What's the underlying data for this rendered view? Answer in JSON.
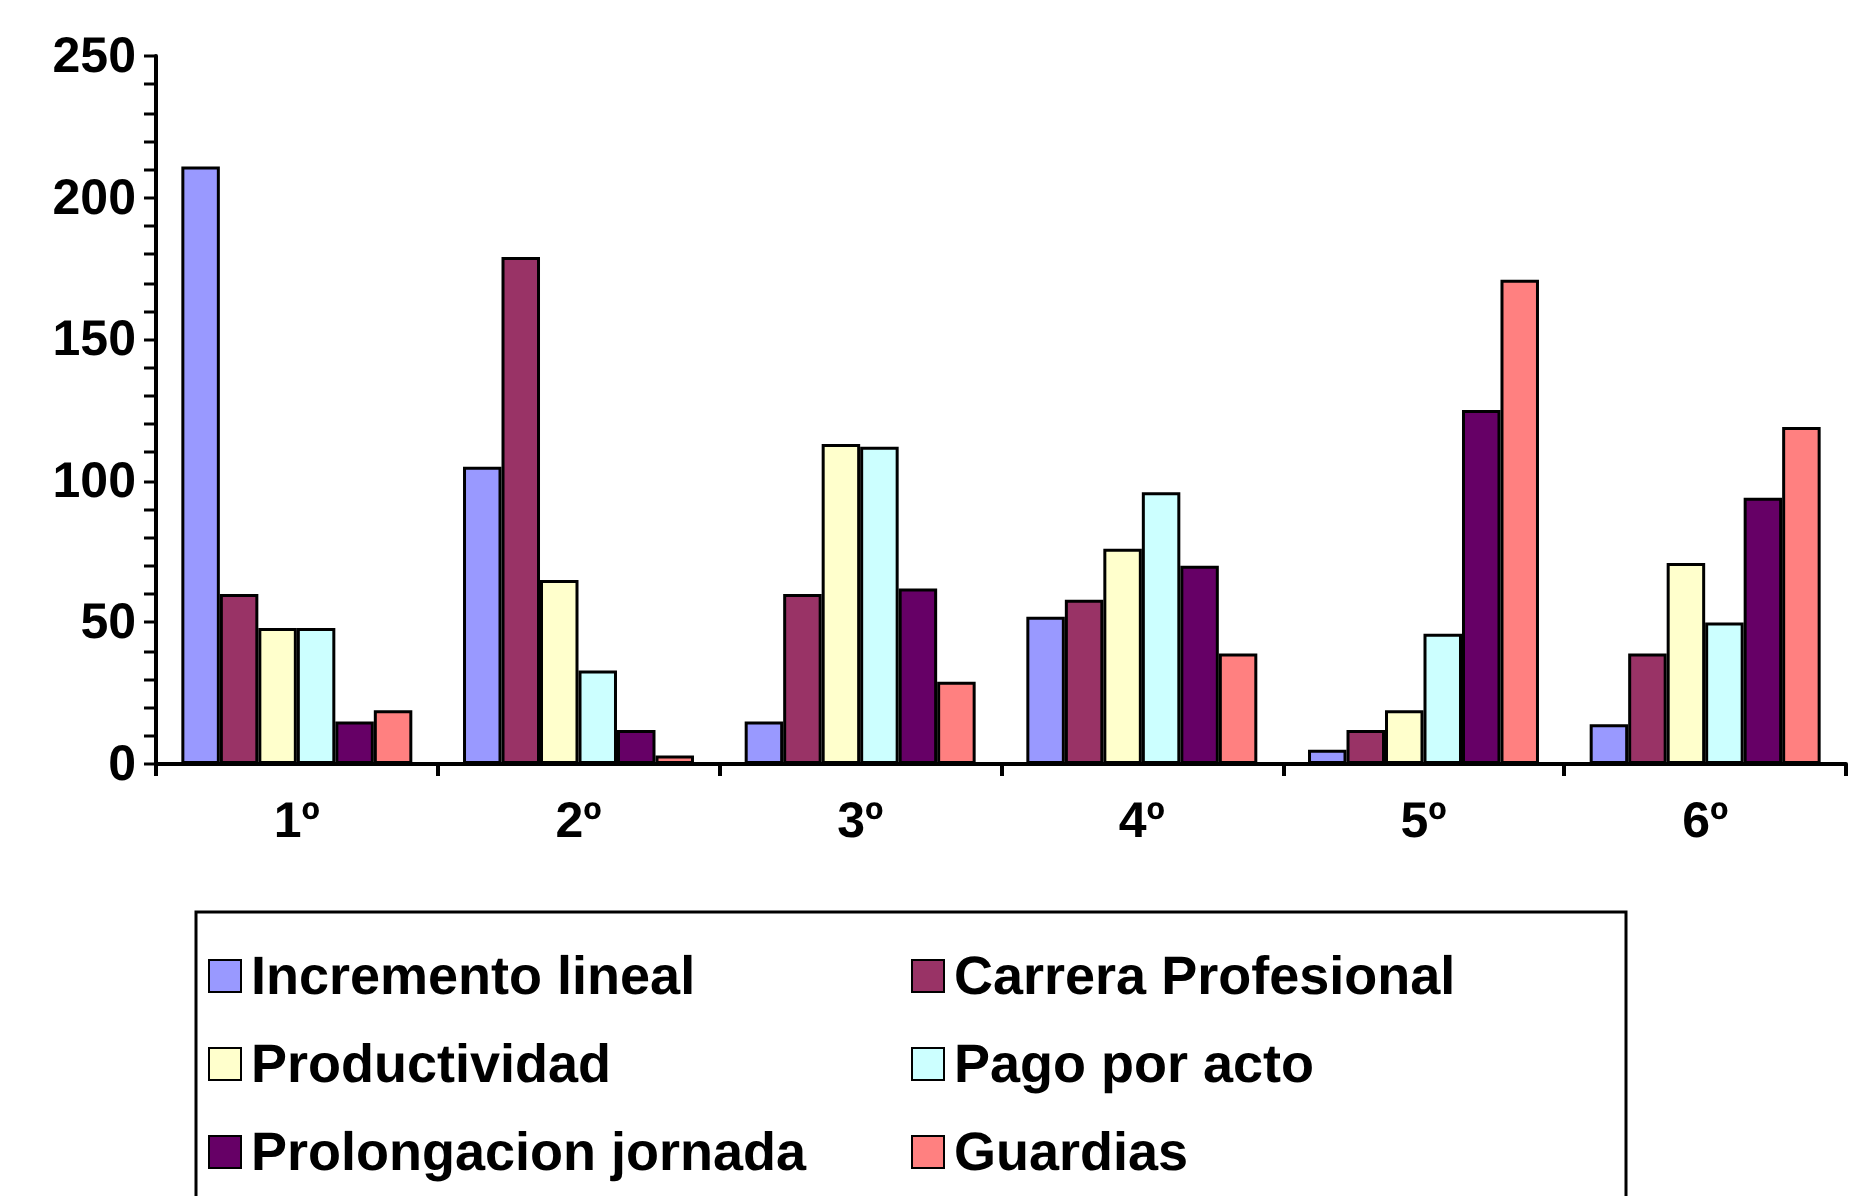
{
  "chart_data": {
    "type": "bar",
    "categories": [
      "1º",
      "2º",
      "3º",
      "4º",
      "5º",
      "6º"
    ],
    "ylim": [
      0,
      250
    ],
    "yticks": [
      0,
      {
        "value": 10,
        "label": null
      },
      {
        "value": 20,
        "label": null
      },
      {
        "value": 30,
        "label": null
      },
      {
        "value": 40,
        "label": null
      },
      50,
      {
        "value": 60,
        "label": null
      },
      {
        "value": 70,
        "label": null
      },
      {
        "value": 80,
        "label": null
      },
      {
        "value": 90,
        "label": null
      },
      100,
      {
        "value": 110,
        "label": null
      },
      {
        "value": 120,
        "label": null
      },
      {
        "value": 130,
        "label": null
      },
      {
        "value": 140,
        "label": null
      },
      150,
      {
        "value": 160,
        "label": null
      },
      {
        "value": 170,
        "label": null
      },
      {
        "value": 180,
        "label": null
      },
      {
        "value": 190,
        "label": null
      },
      200,
      {
        "value": 210,
        "label": null
      },
      {
        "value": 220,
        "label": null
      },
      {
        "value": 230,
        "label": null
      },
      {
        "value": 240,
        "label": null
      },
      250
    ],
    "grid": false,
    "legend": "bottom",
    "series": [
      {
        "name": "Incremento lineal",
        "color": "#9999ff",
        "values": [
          211,
          105,
          15,
          52,
          5,
          14
        ]
      },
      {
        "name": "Carrera Profesional",
        "color": "#993366",
        "values": [
          60,
          179,
          60,
          58,
          12,
          39
        ]
      },
      {
        "name": "Productividad",
        "color": "#ffffcc",
        "values": [
          48,
          65,
          113,
          76,
          19,
          71
        ]
      },
      {
        "name": "Pago por acto",
        "color": "#ccffff",
        "values": [
          48,
          33,
          112,
          96,
          46,
          50
        ]
      },
      {
        "name": "Prolongacion jornada",
        "color": "#660066",
        "values": [
          15,
          12,
          62,
          70,
          125,
          94
        ]
      },
      {
        "name": "Guardias",
        "color": "#ff8080",
        "values": [
          19,
          3,
          29,
          39,
          171,
          119
        ]
      }
    ]
  }
}
